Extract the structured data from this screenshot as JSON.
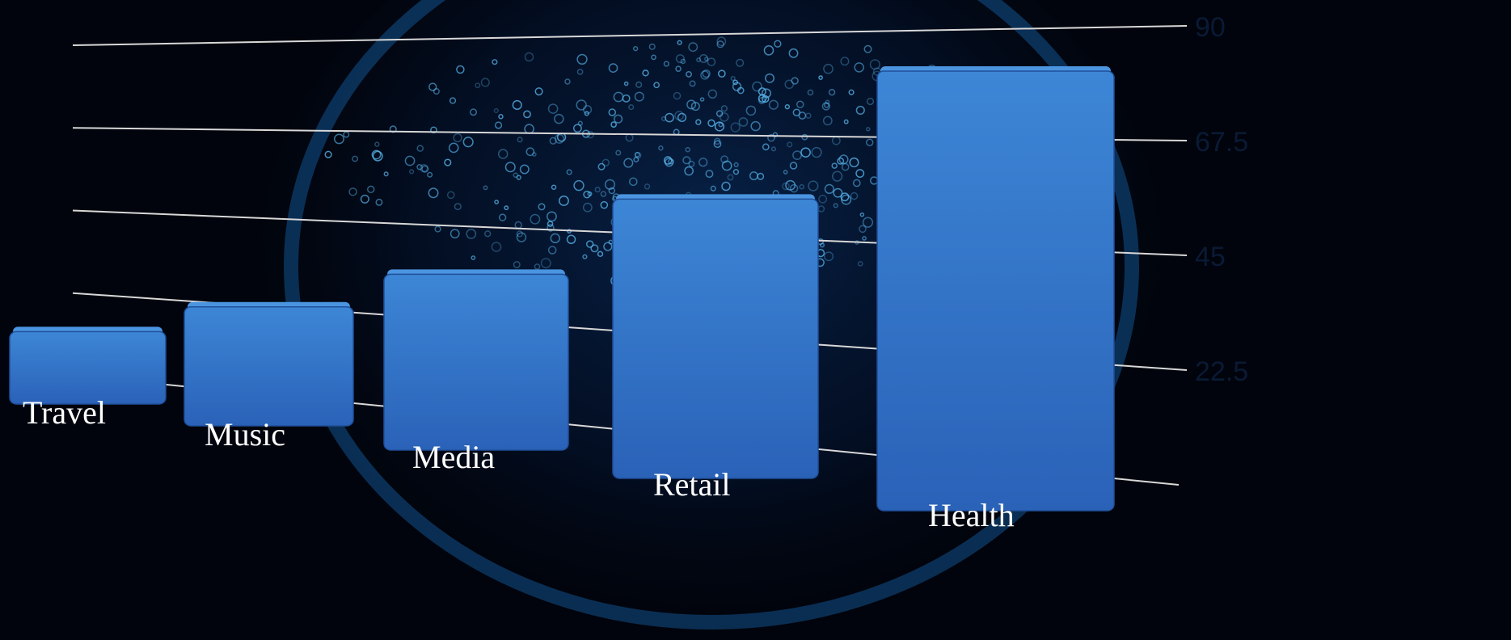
{
  "chart_data": {
    "type": "bar",
    "categories": [
      "Travel",
      "Music",
      "Media",
      "Retail",
      "Health"
    ],
    "values": [
      14,
      23,
      34,
      54,
      85
    ],
    "color": "#2f6fc4",
    "ylim": [
      0,
      90
    ],
    "yticks": [
      22.5,
      45,
      67.5,
      90
    ],
    "grid": true
  }
}
